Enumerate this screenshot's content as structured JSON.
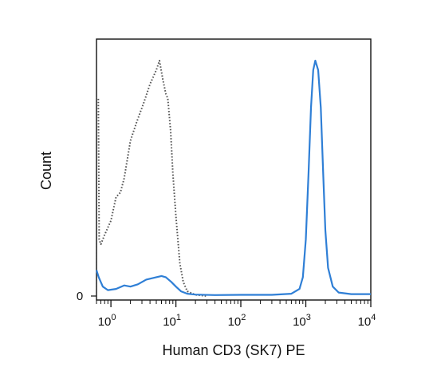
{
  "chart_data": {
    "type": "line",
    "title": "",
    "xlabel": "Human CD3 (SK7) PE",
    "ylabel": "Count",
    "x_scale": "log",
    "xlim": [
      0.6,
      10000
    ],
    "ylim": [
      0,
      100
    ],
    "x_ticks": [
      {
        "base": "10",
        "exp": "0",
        "value": 1
      },
      {
        "base": "10",
        "exp": "1",
        "value": 10
      },
      {
        "base": "10",
        "exp": "2",
        "value": 100
      },
      {
        "base": "10",
        "exp": "3",
        "value": 1000
      },
      {
        "base": "10",
        "exp": "4",
        "value": 10000
      }
    ],
    "y_tick_label": "0",
    "series": [
      {
        "color": "#555555",
        "style": "dotted",
        "points": [
          [
            0.6,
            0
          ],
          [
            0.6,
            84
          ],
          [
            0.64,
            84
          ],
          [
            0.66,
            24
          ],
          [
            0.7,
            22
          ],
          [
            0.8,
            26
          ],
          [
            1.0,
            32
          ],
          [
            1.2,
            42
          ],
          [
            1.4,
            44
          ],
          [
            1.6,
            50
          ],
          [
            2.0,
            66
          ],
          [
            2.5,
            74
          ],
          [
            3.2,
            82
          ],
          [
            4.0,
            90
          ],
          [
            5.0,
            96
          ],
          [
            5.6,
            100
          ],
          [
            6.3,
            92
          ],
          [
            7.0,
            86
          ],
          [
            7.5,
            84
          ],
          [
            8.3,
            70
          ],
          [
            9.0,
            52
          ],
          [
            10.0,
            34
          ],
          [
            11.5,
            14
          ],
          [
            13.0,
            6
          ],
          [
            15.0,
            2
          ],
          [
            20.0,
            0.5
          ],
          [
            30.0,
            0
          ]
        ]
      },
      {
        "color": "#2f7fd6",
        "style": "solid",
        "points": [
          [
            0.6,
            11
          ],
          [
            0.65,
            8
          ],
          [
            0.75,
            4
          ],
          [
            0.9,
            2.5
          ],
          [
            1.2,
            3
          ],
          [
            1.6,
            4.5
          ],
          [
            2.0,
            4
          ],
          [
            2.6,
            5
          ],
          [
            3.5,
            7
          ],
          [
            5.0,
            8
          ],
          [
            6.0,
            8.5
          ],
          [
            7.0,
            8
          ],
          [
            8.5,
            6
          ],
          [
            10.0,
            4
          ],
          [
            12.0,
            2
          ],
          [
            15.0,
            1
          ],
          [
            20.0,
            0.6
          ],
          [
            40.0,
            0.4
          ],
          [
            100.0,
            0.5
          ],
          [
            300.0,
            0.5
          ],
          [
            600.0,
            1
          ],
          [
            800.0,
            3
          ],
          [
            900.0,
            8
          ],
          [
            1000.0,
            24
          ],
          [
            1100.0,
            52
          ],
          [
            1200.0,
            80
          ],
          [
            1300.0,
            96
          ],
          [
            1400.0,
            100
          ],
          [
            1550.0,
            96
          ],
          [
            1700.0,
            80
          ],
          [
            1850.0,
            52
          ],
          [
            2000.0,
            28
          ],
          [
            2200.0,
            12
          ],
          [
            2600.0,
            4
          ],
          [
            3200.0,
            1.5
          ],
          [
            5000.0,
            0.8
          ],
          [
            10000.0,
            0.8
          ]
        ]
      }
    ]
  }
}
